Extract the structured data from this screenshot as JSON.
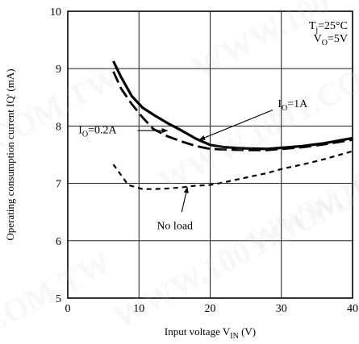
{
  "chart_data": {
    "type": "line",
    "xlabel": "Input voltage V",
    "xlabel_sub": "IN",
    "xlabel_unit": " (V)",
    "ylabel": "Operating consumption current IQ' (mA)",
    "xlim": [
      0,
      40
    ],
    "ylim": [
      5,
      10
    ],
    "xticks": [
      0,
      10,
      20,
      30,
      40
    ],
    "yticks": [
      5,
      6,
      7,
      8,
      9,
      10
    ],
    "xtick_labels": [
      "0",
      "10",
      "20",
      "30",
      "40"
    ],
    "ytick_labels": [
      "5",
      "6",
      "7",
      "8",
      "9",
      "10"
    ],
    "grid": true,
    "conditions": [
      {
        "main": "T",
        "sub": "j",
        "rest": "=25°C"
      },
      {
        "main": "V",
        "sub": "O",
        "rest": "=5V"
      }
    ],
    "series": [
      {
        "name": "IO=1A",
        "label_main": "I",
        "label_sub": "O",
        "label_rest": "=1A",
        "style": "solid",
        "x": [
          6.4,
          7.5,
          9,
          10.5,
          12,
          14,
          16,
          18,
          20,
          22,
          25,
          28,
          30,
          33,
          36,
          40
        ],
        "y": [
          9.13,
          8.85,
          8.52,
          8.32,
          8.2,
          8.05,
          7.92,
          7.78,
          7.67,
          7.63,
          7.61,
          7.6,
          7.62,
          7.65,
          7.7,
          7.79
        ]
      },
      {
        "name": "IO=0.2A",
        "label_main": "I",
        "label_sub": "O",
        "label_rest": "=0.2A",
        "style": "dashed",
        "x": [
          6.4,
          7.5,
          9,
          10.5,
          12,
          14,
          16,
          18,
          20,
          22,
          25,
          28,
          30,
          33,
          36,
          40
        ],
        "y": [
          8.95,
          8.65,
          8.38,
          8.15,
          7.95,
          7.82,
          7.73,
          7.65,
          7.6,
          7.59,
          7.58,
          7.58,
          7.6,
          7.63,
          7.68,
          7.76
        ]
      },
      {
        "name": "No load",
        "label_main": "No load",
        "label_sub": "",
        "label_rest": "",
        "style": "short-dashed",
        "x": [
          6.4,
          8.5,
          10.5,
          12,
          14,
          16,
          18,
          20,
          22,
          25,
          28,
          30,
          33,
          36,
          40
        ],
        "y": [
          7.33,
          6.97,
          6.9,
          6.9,
          6.91,
          6.93,
          6.96,
          6.97,
          7.02,
          7.1,
          7.18,
          7.25,
          7.33,
          7.42,
          7.56
        ]
      }
    ],
    "annotations": [
      {
        "series": "IO=1A",
        "text_x": 29.5,
        "text_y": 8.33,
        "arrow_from": [
          28.8,
          8.28
        ],
        "arrow_to": [
          18.5,
          7.76
        ]
      },
      {
        "series": "IO=0.2A",
        "text_x": 1.5,
        "text_y": 7.87,
        "arrow_from": [
          9.8,
          7.92
        ],
        "arrow_to": [
          14.0,
          7.92
        ]
      },
      {
        "series": "No load",
        "text_x": 12.5,
        "text_y": 6.2,
        "arrow_from": [
          16.0,
          6.5
        ],
        "arrow_to": [
          16.8,
          6.93
        ]
      }
    ]
  },
  "watermarks": [
    "WWW.100",
    "WWW.100Y.COM",
    "COM.TW",
    "WWW.10",
    "WWW.100Y.COM.TW",
    "COM.TW"
  ]
}
